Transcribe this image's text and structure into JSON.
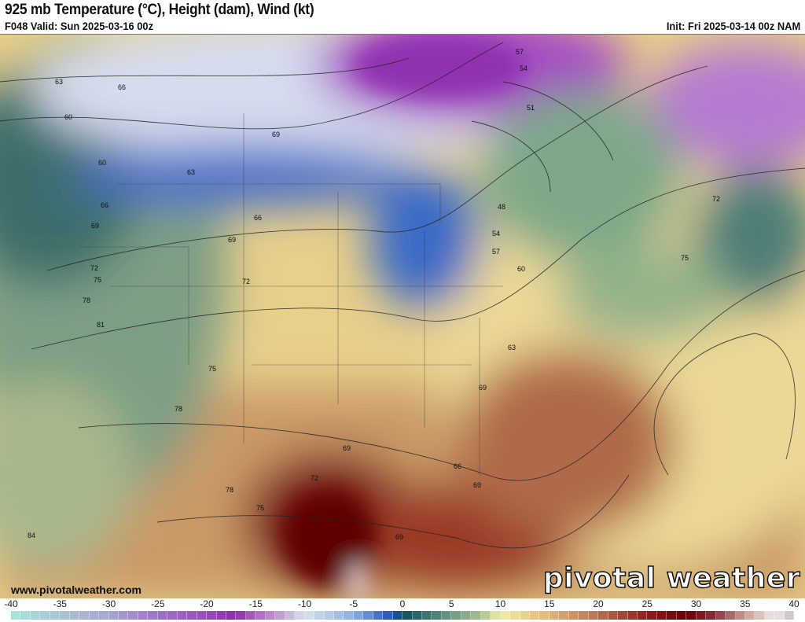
{
  "header": {
    "title": "925 mb Temperature (°C), Height (dam), Wind (kt)",
    "valid": "F048 Valid: Sun 2025-03-16 00z",
    "init": "Init: Fri 2025-03-14 00z NAM"
  },
  "footer": {
    "website": "www.pivotalweather.com",
    "brand": "pivotal weather"
  },
  "colorbar": {
    "unit": "°C",
    "min": -40,
    "max": 40,
    "ticks": [
      "-40",
      "-35",
      "-30",
      "-25",
      "-20",
      "-15",
      "-10",
      "-5",
      "0",
      "5",
      "10",
      "15",
      "20",
      "25",
      "30",
      "35",
      "40"
    ],
    "color_stops": [
      [
        -40,
        "#a8e6dc"
      ],
      [
        -35,
        "#a8c4d6"
      ],
      [
        -30,
        "#a8a6d2"
      ],
      [
        -25,
        "#a072c8"
      ],
      [
        -20,
        "#9a4cc0"
      ],
      [
        -17,
        "#8e2aa8"
      ],
      [
        -15,
        "#b064c2"
      ],
      [
        -12,
        "#c8a8d8"
      ],
      [
        -10,
        "#d8e2ea"
      ],
      [
        -5,
        "#8eb0e0"
      ],
      [
        -1,
        "#2050c0"
      ],
      [
        0,
        "#0c5060"
      ],
      [
        5,
        "#6a9a80"
      ],
      [
        8,
        "#a8c090"
      ],
      [
        10,
        "#f0eea0"
      ],
      [
        15,
        "#e0b878"
      ],
      [
        20,
        "#b87050"
      ],
      [
        25,
        "#901c20"
      ],
      [
        29,
        "#6a0000"
      ],
      [
        32,
        "#903040"
      ],
      [
        35,
        "#c8a090"
      ],
      [
        38,
        "#f0e8e8"
      ],
      [
        40,
        "#c8c0c0"
      ]
    ]
  },
  "height_contour_labels": [
    "63",
    "66",
    "60",
    "60",
    "63",
    "66",
    "69",
    "69",
    "66",
    "69",
    "72",
    "75",
    "78",
    "81",
    "75",
    "78",
    "72",
    "69",
    "78",
    "75",
    "84",
    "69",
    "72",
    "69",
    "66",
    "69",
    "63",
    "60",
    "57",
    "54",
    "48",
    "51",
    "54",
    "57",
    "72",
    "75"
  ]
}
